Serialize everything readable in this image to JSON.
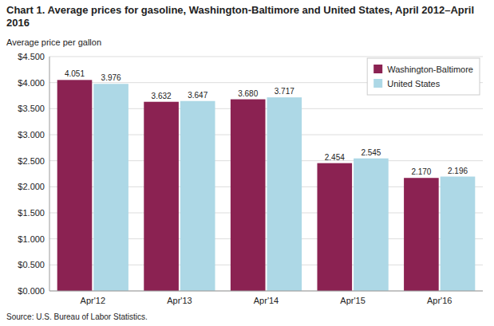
{
  "chart_data": {
    "type": "bar",
    "title": "Chart 1. Average prices for gasoline, Washington-Baltimore and United States, April 2012–April 2016",
    "ylabel": "Average price per gallon",
    "annotations": [
      "Source: U.S. Bureau of Labor Statistics."
    ],
    "categories": [
      "Apr'12",
      "Apr'13",
      "Apr'14",
      "Apr'15",
      "Apr'16"
    ],
    "series": [
      {
        "name": "Washington-Baltimore",
        "color": "#8B2252",
        "values": [
          4.051,
          3.632,
          3.68,
          2.454,
          2.17
        ],
        "value_labels": [
          "4.051",
          "3.632",
          "3.680",
          "2.454",
          "2.170"
        ]
      },
      {
        "name": "United States",
        "color": "#ADD8E6",
        "values": [
          3.976,
          3.647,
          3.717,
          2.545,
          2.196
        ],
        "value_labels": [
          "3.976",
          "3.647",
          "3.717",
          "2.545",
          "2.196"
        ]
      }
    ],
    "ylim": [
      0,
      4.5
    ],
    "yticks": [
      {
        "value": 0.0,
        "label": "$0.000"
      },
      {
        "value": 0.5,
        "label": "$0.500"
      },
      {
        "value": 1.0,
        "label": "$1.000"
      },
      {
        "value": 1.5,
        "label": "$1.500"
      },
      {
        "value": 2.0,
        "label": "$2.000"
      },
      {
        "value": 2.5,
        "label": "$2.500"
      },
      {
        "value": 3.0,
        "label": "$3.000"
      },
      {
        "value": 3.5,
        "label": "$3.500"
      },
      {
        "value": 4.0,
        "label": "$4.000"
      },
      {
        "value": 4.5,
        "label": "$4.500"
      }
    ],
    "grid": true,
    "legend": "upper right",
    "data_labels": true
  }
}
